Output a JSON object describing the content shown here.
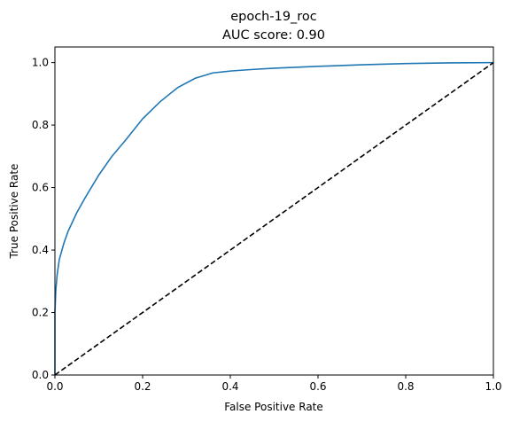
{
  "chart_data": {
    "type": "line",
    "title": "epoch-19_roc",
    "subtitle": "AUC score: 0.90",
    "xlabel": "False Positive Rate",
    "ylabel": "True Positive Rate",
    "xlim": [
      0.0,
      1.0
    ],
    "ylim": [
      0.0,
      1.05
    ],
    "xticks": [
      "0.0",
      "0.2",
      "0.4",
      "0.6",
      "0.8",
      "1.0"
    ],
    "yticks": [
      "0.0",
      "0.2",
      "0.4",
      "0.6",
      "0.8",
      "1.0"
    ],
    "grid": false,
    "series": [
      {
        "color": "#1f77b4",
        "style": "solid",
        "x": [
          0.0,
          0.0,
          0.002,
          0.005,
          0.01,
          0.02,
          0.03,
          0.05,
          0.07,
          0.1,
          0.13,
          0.16,
          0.2,
          0.24,
          0.28,
          0.32,
          0.36,
          0.4,
          0.45,
          0.5,
          0.6,
          0.7,
          0.8,
          0.9,
          1.0
        ],
        "y": [
          0.0,
          0.2,
          0.27,
          0.32,
          0.37,
          0.42,
          0.46,
          0.52,
          0.57,
          0.64,
          0.7,
          0.75,
          0.82,
          0.875,
          0.92,
          0.95,
          0.967,
          0.973,
          0.978,
          0.982,
          0.988,
          0.993,
          0.997,
          0.999,
          1.0
        ]
      },
      {
        "color": "#000000",
        "style": "dashed",
        "x": [
          0.0,
          1.0
        ],
        "y": [
          0.0,
          1.0
        ]
      }
    ]
  }
}
